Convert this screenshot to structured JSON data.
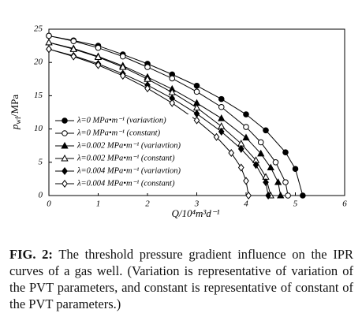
{
  "chart_data": {
    "type": "line",
    "x_label": "Q/10⁴m³d⁻¹",
    "y_label": "p",
    "y_label_sub": "wf",
    "y_label_unit": "/MPa",
    "xlim": [
      0,
      6
    ],
    "xticks": [
      0,
      1,
      2,
      3,
      4,
      5,
      6
    ],
    "ylim": [
      0,
      25
    ],
    "yticks": [
      0,
      5,
      10,
      15,
      20,
      25
    ],
    "legend": "lower left",
    "series": [
      {
        "name": "λ=0 MPa•m⁻¹ (variavtion)",
        "color": "#000000",
        "marker": "circle",
        "filled": true,
        "x": [
          0,
          0.5,
          1,
          1.5,
          2,
          2.5,
          3,
          3.5,
          4,
          4.4,
          4.8,
          5.0,
          5.15
        ],
        "values": [
          24,
          23.3,
          22.5,
          21.2,
          19.8,
          18.2,
          16.5,
          14.5,
          12.2,
          9.8,
          6.5,
          4.0,
          0
        ]
      },
      {
        "name": "λ=0 MPa•m⁻¹ (constant)",
        "color": "#000000",
        "marker": "circle",
        "filled": false,
        "x": [
          0,
          0.5,
          1,
          1.5,
          2,
          2.5,
          3,
          3.5,
          4,
          4.3,
          4.6,
          4.8,
          4.85
        ],
        "values": [
          24,
          23.2,
          22.2,
          20.9,
          19.3,
          17.6,
          15.6,
          13.3,
          10.3,
          8.0,
          5.0,
          2.0,
          0
        ]
      },
      {
        "name": "λ=0.002 MPa•m⁻¹ (variavtion)",
        "color": "#000000",
        "marker": "triangle",
        "filled": true,
        "x": [
          0,
          0.5,
          1,
          1.5,
          2,
          2.5,
          3,
          3.5,
          4,
          4.3,
          4.5,
          4.65,
          4.7
        ],
        "values": [
          23,
          22.1,
          20.9,
          19.5,
          17.8,
          16.0,
          13.9,
          11.6,
          8.7,
          6.3,
          4.2,
          2.0,
          0
        ]
      },
      {
        "name": "λ=0.002 MPa•m⁻¹ (constant)",
        "color": "#000000",
        "marker": "triangle",
        "filled": false,
        "x": [
          0,
          0.5,
          1,
          1.5,
          2,
          2.5,
          3,
          3.5,
          3.9,
          4.2,
          4.4,
          4.5
        ],
        "values": [
          23,
          22.0,
          20.8,
          19.3,
          17.5,
          15.5,
          13.2,
          10.4,
          7.8,
          5.3,
          2.8,
          0
        ]
      },
      {
        "name": "λ=0.004 MPa•m⁻¹ (variavtion)",
        "color": "#000000",
        "marker": "diamond",
        "filled": true,
        "x": [
          0,
          0.5,
          1,
          1.5,
          2,
          2.5,
          3,
          3.5,
          3.9,
          4.2,
          4.4,
          4.45
        ],
        "values": [
          22,
          21.0,
          19.8,
          18.3,
          16.6,
          14.6,
          12.3,
          9.6,
          7.0,
          4.6,
          2.0,
          0
        ]
      },
      {
        "name": "λ=0.004 MPa•m⁻¹ (constant)",
        "color": "#000000",
        "marker": "diamond",
        "filled": false,
        "x": [
          0,
          0.5,
          1,
          1.5,
          2,
          2.5,
          3,
          3.4,
          3.7,
          3.9,
          4.0,
          4.05
        ],
        "values": [
          22,
          20.9,
          19.6,
          18.0,
          16.1,
          13.9,
          11.3,
          8.8,
          6.4,
          4.2,
          2.2,
          0
        ]
      }
    ],
    "caption_label": "FIG. 2:",
    "caption": "The threshold pressure gradient influence on the IPR curves of a gas well. (Variation is representative of variation of the PVT parameters, and constant is representative of constant of the PVT parameters.)"
  }
}
